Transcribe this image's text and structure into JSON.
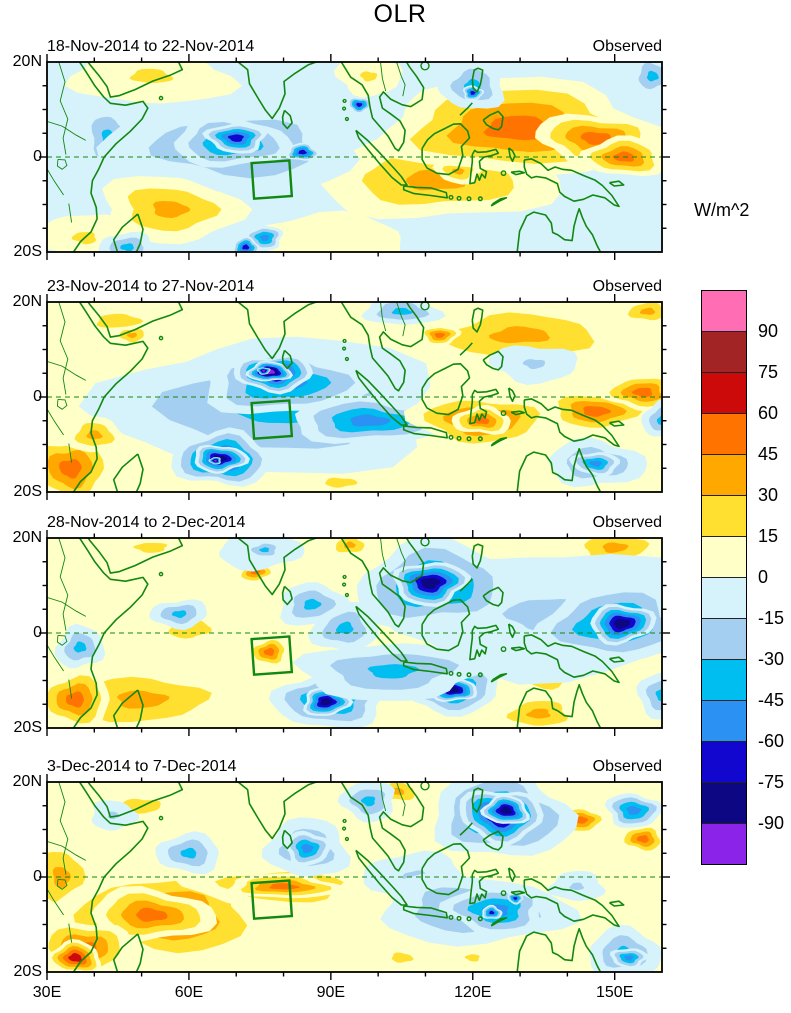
{
  "title": "OLR",
  "colorbar": {
    "unit": "W/m^2",
    "labels": [
      "90",
      "75",
      "60",
      "45",
      "30",
      "15",
      "0",
      "-15",
      "-30",
      "-45",
      "-60",
      "-75",
      "-90"
    ],
    "colors_top_to_bottom": [
      "#ff6eb4",
      "#a32424",
      "#cc0a0a",
      "#ff7300",
      "#ffa800",
      "#ffdf30",
      "#ffffc8",
      "#d6f2fa",
      "#a4cff0",
      "#00bef0",
      "#2b91f2",
      "#1207ce",
      "#0e0784",
      "#8b24e8"
    ]
  },
  "axes": {
    "xtick_labels": [
      "30E",
      "60E",
      "90E",
      "120E",
      "150E"
    ],
    "xtick_lons": [
      30,
      60,
      90,
      120,
      150
    ],
    "ytick_labels": [
      "20N",
      "0",
      "20S"
    ],
    "ytick_lats": [
      20,
      0,
      -20
    ]
  },
  "map_style": {
    "coast_color": "#118811",
    "frame_color": "#000000",
    "equator_dashed": true
  },
  "chart_data": {
    "type": "heatmap",
    "title": "OLR",
    "units": "W/m^2",
    "lon_range": [
      30,
      160
    ],
    "lat_range": [
      -20,
      20
    ],
    "levels_wm2": [
      -90,
      -75,
      -60,
      -45,
      -30,
      -15,
      0,
      15,
      30,
      45,
      60,
      75,
      90
    ],
    "index_box": {
      "lon_min": 73.5,
      "lon_max": 81.5,
      "lat_min": -8.5,
      "lat_max": -1,
      "tilt_deg": -4
    },
    "feature_format": "[lon_center_E, lat_center_N, radius_lon_deg, radius_lat_deg, peak_anomaly_wm2]",
    "panels": [
      {
        "date_range": "18-Nov-2014 to 22-Nov-2014",
        "source": "Observed",
        "base_value": -8,
        "features": [
          [
            52,
            17,
            17,
            6,
            20
          ],
          [
            98,
            17,
            7,
            4,
            18
          ],
          [
            90,
            -17,
            16,
            5,
            12
          ],
          [
            56,
            -11,
            15,
            7,
            38
          ],
          [
            38,
            -17,
            10,
            5,
            22
          ],
          [
            112,
            -5,
            26,
            8,
            38
          ],
          [
            117,
            -3,
            5,
            2.5,
            40
          ],
          [
            130,
            6,
            30,
            10,
            50
          ],
          [
            146,
            4,
            13,
            5,
            58
          ],
          [
            152,
            0,
            9,
            4,
            50
          ],
          [
            43,
            4,
            6,
            7,
            -32
          ],
          [
            70,
            2,
            28,
            9,
            -32
          ],
          [
            69,
            3,
            13,
            5,
            -50
          ],
          [
            70,
            4,
            6.5,
            3,
            -72
          ],
          [
            84,
            1,
            3.5,
            1.8,
            -62
          ],
          [
            96,
            11,
            2.6,
            1.6,
            -62
          ],
          [
            120,
            15,
            7,
            5,
            -40
          ],
          [
            120,
            13.5,
            2.2,
            1.5,
            -62
          ],
          [
            47,
            -19,
            6,
            3,
            -35
          ],
          [
            158,
            17,
            5,
            4,
            -35
          ],
          [
            76,
            -17,
            4,
            2.5,
            -48
          ],
          [
            72,
            -19,
            3,
            2,
            -62
          ]
        ]
      },
      {
        "date_range": "23-Nov-2014 to 27-Nov-2014",
        "source": "Observed",
        "base_value": 8,
        "features": [
          [
            45,
            16,
            18,
            6,
            25
          ],
          [
            48,
            13,
            4,
            2.2,
            40
          ],
          [
            130,
            13,
            24,
            7,
            30
          ],
          [
            113,
            13,
            4,
            2.2,
            48
          ],
          [
            157,
            18,
            6,
            3,
            38
          ],
          [
            92,
            -18,
            13,
            4,
            20
          ],
          [
            78,
            -2,
            34,
            15,
            -32
          ],
          [
            80,
            3,
            17,
            7,
            -46
          ],
          [
            78,
            5,
            8,
            4,
            -76
          ],
          [
            77,
            5.3,
            4.5,
            2.2,
            -91
          ],
          [
            75.8,
            5.5,
            1.3,
            0.8,
            -96
          ],
          [
            67,
            -13,
            10,
            6,
            -60
          ],
          [
            66.5,
            -13,
            5.5,
            3,
            -86
          ],
          [
            65.6,
            -13.4,
            1.2,
            0.8,
            -96
          ],
          [
            98,
            -5,
            16,
            5,
            -48
          ],
          [
            35,
            -15,
            9,
            8,
            58
          ],
          [
            40,
            -8,
            6,
            4,
            38
          ],
          [
            122,
            -5,
            15,
            6,
            46
          ],
          [
            122,
            -5,
            6,
            3,
            57
          ],
          [
            146,
            -3,
            11,
            4.5,
            50
          ],
          [
            156,
            1,
            8,
            4,
            50
          ],
          [
            146,
            -14,
            10,
            5,
            -32
          ],
          [
            146,
            -14,
            5,
            2.5,
            -46
          ],
          [
            105,
            18,
            8,
            3,
            -32
          ],
          [
            133,
            7,
            9,
            4,
            -26
          ],
          [
            160,
            -5,
            4,
            4,
            -30
          ]
        ]
      },
      {
        "date_range": "28-Nov-2014 to 2-Dec-2014",
        "source": "Observed",
        "base_value": 8,
        "features": [
          [
            50,
            -14,
            22,
            7,
            35
          ],
          [
            36,
            -14,
            8,
            6,
            58
          ],
          [
            60,
            1,
            18,
            8,
            26
          ],
          [
            52,
            18,
            14,
            4,
            25
          ],
          [
            94,
            18.5,
            5,
            2.5,
            36
          ],
          [
            136,
            -9,
            8,
            4,
            32
          ],
          [
            134,
            -17,
            10,
            4,
            36
          ],
          [
            150,
            18,
            11,
            4,
            30
          ],
          [
            77,
            -4,
            4.5,
            3,
            47
          ],
          [
            74,
            13,
            4,
            2.5,
            46
          ],
          [
            135,
            4,
            32,
            13,
            -26
          ],
          [
            112,
            10,
            17,
            9,
            -46
          ],
          [
            111,
            10.5,
            8,
            4.5,
            -76
          ],
          [
            150,
            2,
            16,
            8,
            -46
          ],
          [
            151.5,
            2,
            7,
            4,
            -76
          ],
          [
            90,
            -14,
            12,
            6,
            -46
          ],
          [
            89,
            -14.5,
            5,
            3,
            -76
          ],
          [
            116,
            -12,
            10,
            5,
            -46
          ],
          [
            116,
            -12,
            5,
            2.5,
            -76
          ],
          [
            103,
            -8,
            20,
            6,
            -33
          ],
          [
            93,
            1,
            7,
            5,
            -40
          ],
          [
            75,
            17,
            9,
            3.5,
            -28
          ],
          [
            76,
            17.5,
            4,
            2,
            -42
          ],
          [
            86,
            6,
            7,
            4.5,
            -33
          ],
          [
            58,
            4,
            6,
            3,
            -30
          ],
          [
            37,
            -3,
            5,
            4.5,
            -42
          ],
          [
            160,
            -13,
            5,
            5,
            -32
          ]
        ]
      },
      {
        "date_range": "3-Dec-2014 to 7-Dec-2014",
        "source": "Observed",
        "base_value": 8,
        "features": [
          [
            50,
            15,
            16,
            6,
            20
          ],
          [
            104,
            18,
            6,
            3,
            36
          ],
          [
            33,
            0,
            7,
            9,
            36
          ],
          [
            55,
            -8,
            23,
            10,
            46
          ],
          [
            52,
            -8,
            13,
            5.5,
            57
          ],
          [
            80,
            -2,
            20,
            5,
            42
          ],
          [
            80,
            -2,
            12,
            2.6,
            53
          ],
          [
            38,
            -15,
            10,
            6,
            52
          ],
          [
            36,
            -17,
            5.5,
            3.5,
            70
          ],
          [
            143,
            12,
            5,
            3,
            46
          ],
          [
            156,
            8,
            5,
            3,
            46
          ],
          [
            105,
            -17,
            9,
            4,
            26
          ],
          [
            120,
            -17,
            6,
            3,
            26
          ],
          [
            126,
            13,
            15,
            9,
            -46
          ],
          [
            126,
            13,
            9,
            5.5,
            -82
          ],
          [
            127,
            14,
            5,
            3,
            -89
          ],
          [
            154,
            14,
            6,
            3.5,
            -46
          ],
          [
            108,
            0,
            11,
            5,
            -26
          ],
          [
            120,
            -7,
            21,
            7,
            -33
          ],
          [
            125,
            -7,
            11,
            5,
            -48
          ],
          [
            124,
            -7.5,
            2.2,
            1.4,
            -72
          ],
          [
            129,
            -4.5,
            1.7,
            1.1,
            -72
          ],
          [
            85,
            6,
            9,
            6,
            -33
          ],
          [
            85,
            6,
            5,
            3.5,
            -46
          ],
          [
            60,
            5,
            7,
            4,
            -36
          ],
          [
            44,
            13,
            5,
            3,
            -26
          ],
          [
            98,
            16,
            6,
            4,
            -32
          ],
          [
            152,
            -16,
            8,
            5,
            -33
          ],
          [
            153,
            -17,
            4,
            2,
            -46
          ],
          [
            142,
            -2,
            6,
            3,
            -26
          ]
        ]
      }
    ]
  }
}
